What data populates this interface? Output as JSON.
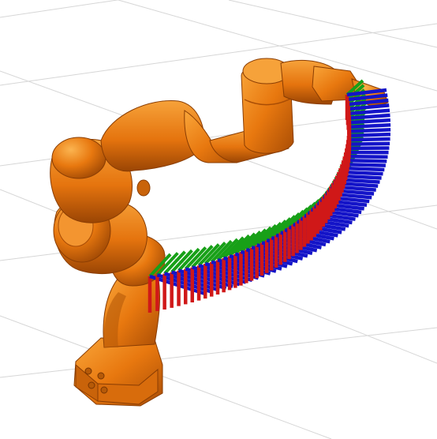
{
  "scene": {
    "subject": "robot-arm",
    "colors": {
      "background": "#ffffff",
      "grid": "#d6d6d6",
      "arm": "#e8780f",
      "arm_light": "#f7a030",
      "arm_dark": "#b95606",
      "arm_shadow": "#8a3d03",
      "axis_x": "#d01818",
      "axis_y": "#18a018",
      "axis_z": "#1414c8"
    },
    "icons": {
      "robot": "robot-arm-icon",
      "frame": "coordinate-frame-icon"
    }
  }
}
